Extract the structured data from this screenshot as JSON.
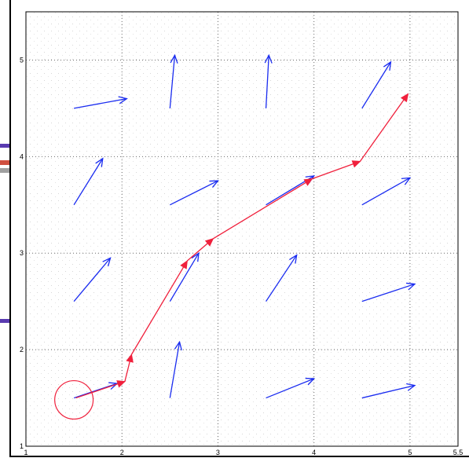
{
  "chart_data": {
    "type": "quiver",
    "xlim": [
      1,
      5.5
    ],
    "ylim": [
      1,
      5.5
    ],
    "grid": true,
    "x_ticks": [
      "1",
      "2",
      "3",
      "4",
      "5",
      "5.5"
    ],
    "y_ticks": [
      "2",
      "3",
      "4",
      "5"
    ],
    "vector_field": {
      "color": "#1a2cf0",
      "vectors": [
        {
          "x": 1.5,
          "y": 4.5,
          "u": 0.55,
          "v": 0.1
        },
        {
          "x": 2.5,
          "y": 4.5,
          "u": 0.05,
          "v": 0.55
        },
        {
          "x": 3.5,
          "y": 4.5,
          "u": 0.03,
          "v": 0.55
        },
        {
          "x": 4.5,
          "y": 4.5,
          "u": 0.3,
          "v": 0.48
        },
        {
          "x": 1.5,
          "y": 3.5,
          "u": 0.3,
          "v": 0.48
        },
        {
          "x": 2.5,
          "y": 3.5,
          "u": 0.5,
          "v": 0.25
        },
        {
          "x": 3.5,
          "y": 3.5,
          "u": 0.5,
          "v": 0.3
        },
        {
          "x": 4.5,
          "y": 3.5,
          "u": 0.5,
          "v": 0.28
        },
        {
          "x": 1.5,
          "y": 2.5,
          "u": 0.38,
          "v": 0.45
        },
        {
          "x": 2.5,
          "y": 2.5,
          "u": 0.3,
          "v": 0.5
        },
        {
          "x": 3.5,
          "y": 2.5,
          "u": 0.32,
          "v": 0.48
        },
        {
          "x": 4.5,
          "y": 2.5,
          "u": 0.55,
          "v": 0.18
        },
        {
          "x": 1.5,
          "y": 1.5,
          "u": 0.45,
          "v": 0.15
        },
        {
          "x": 2.5,
          "y": 1.5,
          "u": 0.1,
          "v": 0.58
        },
        {
          "x": 3.5,
          "y": 1.5,
          "u": 0.5,
          "v": 0.2
        },
        {
          "x": 4.5,
          "y": 1.5,
          "u": 0.55,
          "v": 0.13
        }
      ]
    },
    "path": {
      "color": "#f0203c",
      "points": [
        {
          "x": 1.52,
          "y": 1.5
        },
        {
          "x": 2.03,
          "y": 1.67
        },
        {
          "x": 2.1,
          "y": 1.95
        },
        {
          "x": 2.68,
          "y": 2.92
        },
        {
          "x": 2.95,
          "y": 3.15
        },
        {
          "x": 3.98,
          "y": 3.77
        },
        {
          "x": 4.48,
          "y": 3.95
        },
        {
          "x": 4.98,
          "y": 4.65
        }
      ]
    },
    "start_marker": {
      "x": 1.5,
      "y": 1.48,
      "radius": 0.2,
      "color": "#f0203c"
    }
  },
  "decor": {
    "bar_colors": [
      "#5a3bb0",
      "#d05040",
      "#a0a0a0",
      "#5a3bb0"
    ]
  }
}
